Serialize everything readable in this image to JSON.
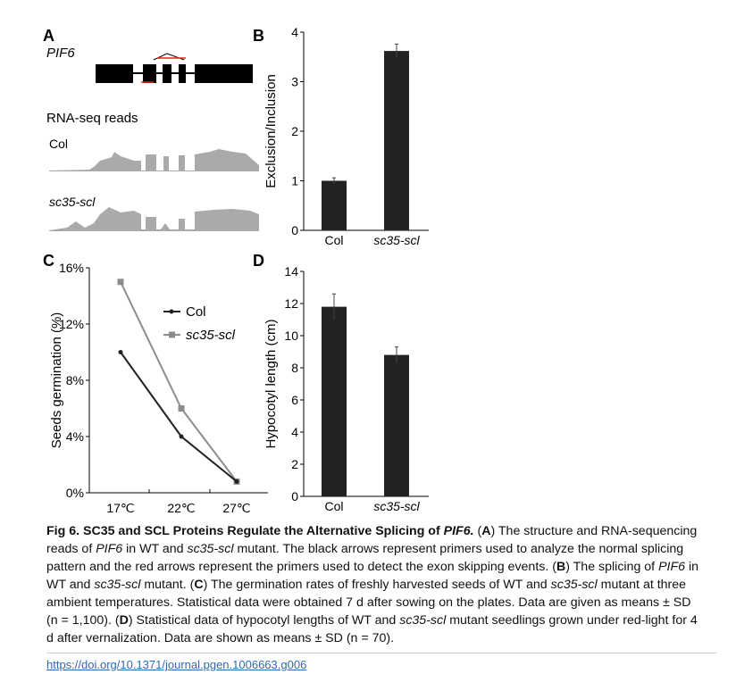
{
  "panels": {
    "a": "A",
    "b": "B",
    "c": "C",
    "d": "D"
  },
  "panel_a": {
    "gene": "PIF6",
    "reads_label": "RNA-seq reads",
    "track1": "Col",
    "track2": "sc35-scl"
  },
  "chart_data": [
    {
      "type": "bar",
      "panel": "B",
      "categories": [
        "Col",
        "sc35-scl"
      ],
      "values": [
        1.0,
        3.62
      ],
      "errors": [
        0.06,
        0.14
      ],
      "ylabel": "Exclusion/Inclusion",
      "ylim": [
        0,
        4
      ],
      "yticks": [
        "0",
        "1",
        "2",
        "3",
        "4"
      ]
    },
    {
      "type": "line",
      "panel": "C",
      "x": [
        "17℃",
        "22℃",
        "27℃"
      ],
      "series": [
        {
          "name": "Col",
          "values": [
            10,
            4,
            0.8
          ],
          "color": "#222222"
        },
        {
          "name": "sc35-scl",
          "values": [
            15,
            6,
            0.8
          ],
          "color": "#8c8c8c"
        }
      ],
      "ylabel": "Seeds germination (%)",
      "ylim": [
        0,
        16
      ],
      "yticks": [
        "0%",
        "4%",
        "8%",
        "12%",
        "16%"
      ],
      "legend": "top-right"
    },
    {
      "type": "bar",
      "panel": "D",
      "categories": [
        "Col",
        "sc35-scl"
      ],
      "values": [
        11.8,
        8.8
      ],
      "errors": [
        0.8,
        0.5
      ],
      "ylabel": "Hypocotyl length (cm)",
      "ylim": [
        0,
        14
      ],
      "yticks": [
        "0",
        "2",
        "4",
        "6",
        "8",
        "10",
        "12",
        "14"
      ]
    }
  ],
  "caption": {
    "fig": "Fig 6.",
    "title": " SC35 and SCL Proteins Regulate the Alternative Splicing of ",
    "title_gene": "PIF6.",
    "body": [
      {
        "t": " ("
      },
      {
        "t": "A",
        "b": 1
      },
      {
        "t": ") The structure and RNA-sequencing reads of "
      },
      {
        "t": "PIF6",
        "i": 1
      },
      {
        "t": " in WT and "
      },
      {
        "t": "sc35-scl",
        "i": 1
      },
      {
        "t": " mutant. The black arrows represent primers used to analyze the normal splicing pattern and the red arrows represent the primers used to detect the exon skipping events. ("
      },
      {
        "t": "B",
        "b": 1
      },
      {
        "t": ") The splicing of "
      },
      {
        "t": "PIF6",
        "i": 1
      },
      {
        "t": " in WT and "
      },
      {
        "t": "sc35-scl",
        "i": 1
      },
      {
        "t": " mutant. ("
      },
      {
        "t": "C",
        "b": 1
      },
      {
        "t": ") The germination rates of freshly harvested seeds of WT and "
      },
      {
        "t": "sc35-scl",
        "i": 1
      },
      {
        "t": " mutant at three ambient temperatures. Statistical data were obtained 7 d after sowing on the plates. Data are given as means ± SD (n = 1,100). ("
      },
      {
        "t": "D",
        "b": 1
      },
      {
        "t": ") Statistical data of hypocotyl lengths of WT and "
      },
      {
        "t": "sc35-scl",
        "i": 1
      },
      {
        "t": " mutant seedlings grown under red-light for 4 d after vernalization. Data are shown as means ± SD (n = 70)."
      }
    ]
  },
  "doi": "https://doi.org/10.1371/journal.pgen.1006663.g006"
}
